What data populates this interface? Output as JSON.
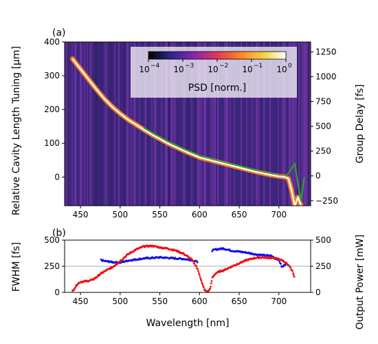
{
  "figure": {
    "panel_a_label": "(a)",
    "panel_b_label": "(b)"
  },
  "colors": {
    "line_white": "#ffffff",
    "line_orange": "#ff8c1a",
    "line_green": "#2ca02c",
    "fwhm": "#1010ee",
    "power": "#ee1111",
    "psd_bg": "#4b2a86",
    "hline": "#aaaaaa"
  },
  "chart_data": [
    {
      "type": "heatmap",
      "panel": "(a)",
      "xlabel": "",
      "ylabel": "Relative Cavity Length Tuning [µm]",
      "ylabel_right": "Group Delay [fs]",
      "xlim": [
        430,
        740
      ],
      "ylim": [
        -85,
        400
      ],
      "y_right_lim": [
        -300,
        1350
      ],
      "x_ticks": [
        "450",
        "500",
        "550",
        "600",
        "650",
        "700"
      ],
      "y_ticks": [
        "0",
        "100",
        "200",
        "300",
        "400"
      ],
      "y_right_ticks": [
        "−250",
        "0",
        "250",
        "500",
        "750",
        "1000",
        "1250"
      ],
      "colorbar": {
        "label": "PSD [norm.]",
        "ticks": [
          "10",
          "10",
          "10",
          "10",
          "10"
        ],
        "exponents": [
          "−4",
          "−3",
          "−2",
          "−1",
          "0"
        ],
        "range": [
          0.0001,
          1
        ],
        "scale": "log",
        "colormap": "CMRmap",
        "placement": "top-right"
      },
      "series": [
        {
          "x": [
            440,
            450,
            460,
            470,
            480,
            490,
            500,
            510,
            520,
            530,
            540,
            550,
            560,
            570,
            580,
            590,
            600,
            610,
            620,
            630,
            640,
            650,
            660,
            670,
            680,
            690,
            700,
            708,
            712,
            716,
            720,
            724,
            728
          ],
          "values": [
            350,
            320,
            290,
            260,
            232,
            208,
            188,
            170,
            155,
            140,
            126,
            113,
            100,
            89,
            78,
            68,
            58,
            52,
            46,
            40,
            34,
            28,
            22,
            16,
            11,
            6,
            2,
            0,
            -5,
            -40,
            -85,
            -60,
            -85
          ]
        },
        {
          "x": [
            530,
            540,
            550,
            560,
            570,
            580,
            590,
            600,
            610,
            620,
            630,
            640,
            650,
            660,
            670,
            680,
            690,
            700,
            708,
            714,
            720,
            724,
            728,
            732
          ],
          "values": [
            145,
            132,
            118,
            106,
            94,
            84,
            73,
            64,
            55,
            50,
            43,
            38,
            33,
            27,
            20,
            14,
            9,
            4,
            0,
            18,
            40,
            -20,
            -70,
            0
          ]
        }
      ]
    },
    {
      "type": "scatter",
      "panel": "(b)",
      "xlabel": "Wavelength [nm]",
      "ylabel": "FWHM [fs]",
      "ylabel_right": "Output Power [mW]",
      "xlim": [
        430,
        740
      ],
      "ylim": [
        0,
        500
      ],
      "y_right_lim": [
        0,
        500
      ],
      "x_ticks": [
        "450",
        "500",
        "550",
        "600",
        "650",
        "700"
      ],
      "y_ticks": [
        "0",
        "250",
        "500"
      ],
      "y_right_ticks": [
        "0",
        "250",
        "500"
      ],
      "hline": 250,
      "series": [
        {
          "name": "",
          "x": [
            476,
            480,
            490,
            500,
            510,
            520,
            530,
            540,
            550,
            560,
            570,
            580,
            590,
            598,
            616,
            620,
            630,
            640,
            650,
            660,
            670,
            680,
            690,
            700,
            704,
            710
          ],
          "values": [
            310,
            300,
            290,
            285,
            305,
            315,
            325,
            330,
            335,
            330,
            325,
            320,
            310,
            290,
            400,
            410,
            420,
            400,
            390,
            380,
            365,
            355,
            350,
            310,
            240,
            285
          ]
        },
        {
          "name": "",
          "x": [
            440,
            443,
            446,
            450,
            455,
            460,
            465,
            470,
            475,
            480,
            485,
            490,
            500,
            510,
            520,
            530,
            540,
            550,
            560,
            570,
            580,
            590,
            596,
            600,
            603,
            606,
            608,
            610,
            612,
            614,
            616,
            620,
            625,
            630,
            640,
            650,
            660,
            670,
            680,
            690,
            700,
            706,
            710,
            714,
            718,
            720
          ],
          "values": [
            10,
            45,
            80,
            100,
            105,
            110,
            120,
            145,
            175,
            200,
            220,
            240,
            300,
            365,
            410,
            440,
            445,
            430,
            420,
            400,
            370,
            315,
            250,
            170,
            90,
            30,
            10,
            5,
            20,
            50,
            140,
            180,
            200,
            210,
            245,
            280,
            310,
            330,
            335,
            330,
            320,
            300,
            270,
            240,
            190,
            120
          ]
        }
      ]
    }
  ]
}
